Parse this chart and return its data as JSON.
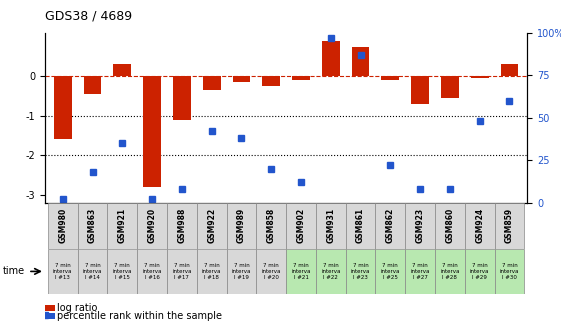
{
  "title": "GDS38 / 4689",
  "samples": [
    "GSM980",
    "GSM863",
    "GSM921",
    "GSM920",
    "GSM988",
    "GSM922",
    "GSM989",
    "GSM858",
    "GSM902",
    "GSM931",
    "GSM861",
    "GSM862",
    "GSM923",
    "GSM860",
    "GSM924",
    "GSM859"
  ],
  "intervals": [
    "7 min\ninterva\nl #13",
    "7 min\ninterva\nl #14",
    "7 min\ninterva\nl #15",
    "7 min\ninterva\nl #16",
    "7 min\ninterva\nl #17",
    "7 min\ninterva\nl #18",
    "7 min\ninterva\nl #19",
    "7 min\ninterva\nl #20",
    "7 min\ninterva\nl #21",
    "7 min\ninterva\nl #22",
    "7 min\ninterva\nl #23",
    "7 min\ninterva\nl #25",
    "7 min\ninterva\nl #27",
    "7 min\ninterva\nl #28",
    "7 min\ninterva\nl #29",
    "7 min\ninterva\nl #30"
  ],
  "log_ratio": [
    -1.6,
    -0.45,
    0.3,
    -2.8,
    -1.1,
    -0.35,
    -0.15,
    -0.25,
    -0.1,
    0.9,
    0.75,
    -0.1,
    -0.7,
    -0.55,
    -0.05,
    0.3
  ],
  "percentile": [
    2,
    18,
    35,
    2,
    8,
    42,
    38,
    20,
    12,
    97,
    87,
    22,
    8,
    8,
    48,
    60
  ],
  "bar_color": "#cc2200",
  "dot_color": "#2255cc",
  "bg_color_gray": "#d8d8d8",
  "bg_color_green": "#b8e8b0",
  "ylim_left": [
    -3.2,
    1.1
  ],
  "ylim_right": [
    0,
    100
  ],
  "yticks_left": [
    -3,
    -2,
    -1,
    0
  ],
  "yticks_right": [
    0,
    25,
    50,
    75,
    100
  ],
  "ytick_labels_right": [
    "0",
    "25",
    "50",
    "75",
    "100%"
  ],
  "hline_y": 0,
  "dotted_lines": [
    -1,
    -2
  ],
  "legend_log": "log ratio",
  "legend_pct": "percentile rank within the sample",
  "time_label": "time"
}
